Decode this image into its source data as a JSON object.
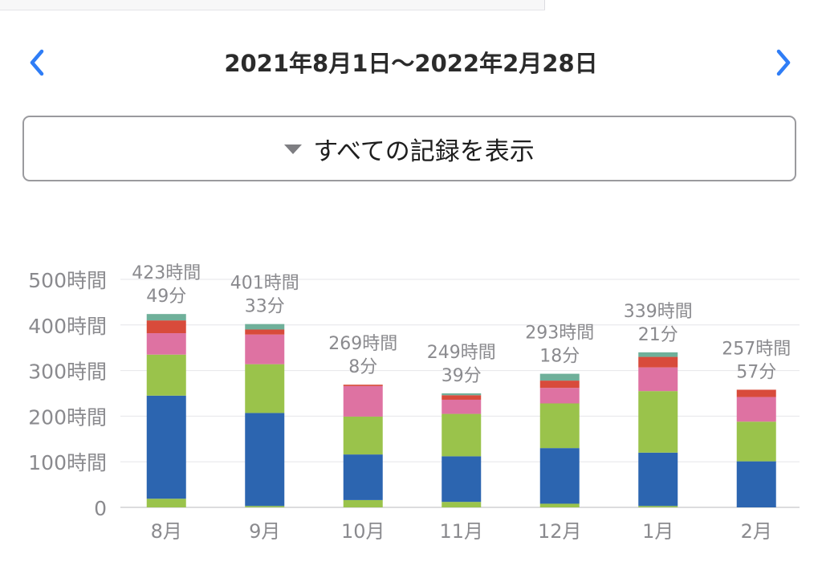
{
  "header": {
    "date_range": "2021年8月1日〜2022年2月28日",
    "prev_icon": "chevron-left-icon",
    "next_icon": "chevron-right-icon",
    "accent_color": "#2f7df6"
  },
  "filter": {
    "label": "すべての記録を表示",
    "icon": "caret-down-icon"
  },
  "chart_data": {
    "type": "bar",
    "stacked": true,
    "categories": [
      "8月",
      "9月",
      "10月",
      "11月",
      "12月",
      "1月",
      "2月"
    ],
    "y_ticks": [
      "0",
      "100時間",
      "200時間",
      "300時間",
      "400時間",
      "500時間"
    ],
    "ylim": [
      0,
      500
    ],
    "grid": true,
    "totals": [
      {
        "hours": "423時間",
        "minutes": "49分"
      },
      {
        "hours": "401時間",
        "minutes": "33分"
      },
      {
        "hours": "269時間",
        "minutes": "8分"
      },
      {
        "hours": "249時間",
        "minutes": "39分"
      },
      {
        "hours": "293時間",
        "minutes": "18分"
      },
      {
        "hours": "339時間",
        "minutes": "21分"
      },
      {
        "hours": "257時間",
        "minutes": "57分"
      }
    ],
    "series": [
      {
        "color": "#9ac34b",
        "values": [
          19,
          3,
          16,
          12,
          8,
          3,
          0
        ]
      },
      {
        "color": "#2c65b0",
        "values": [
          226,
          204,
          100,
          100,
          122,
          117,
          101
        ]
      },
      {
        "color": "#9ac34b",
        "values": [
          90,
          107,
          83,
          93,
          98,
          135,
          87
        ]
      },
      {
        "color": "#de72a2",
        "values": [
          47,
          65,
          67,
          31,
          34,
          52,
          54
        ]
      },
      {
        "color": "#d84b3b",
        "values": [
          28,
          11,
          3,
          10,
          16,
          23,
          16
        ]
      },
      {
        "color": "#6fb09a",
        "values": [
          14,
          12,
          0,
          4,
          15,
          10,
          0
        ]
      }
    ]
  }
}
